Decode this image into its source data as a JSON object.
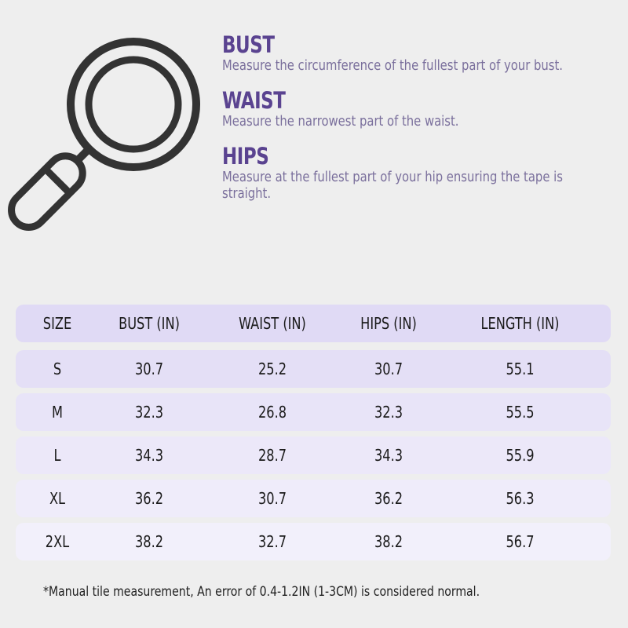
{
  "icon": "magnifying-glass-icon",
  "colors": {
    "heading": "#5a4390",
    "description": "#7a6f9c",
    "header_row": "#e0daf5",
    "rows": [
      "#e4dff6",
      "#e8e4f8",
      "#ece8f9",
      "#efecfa",
      "#f2f0fb"
    ]
  },
  "guide": [
    {
      "title": "BUST",
      "text": "Measure the circumference of the fullest part of your bust."
    },
    {
      "title": "WAIST",
      "text": "Measure the narrowest part of the waist."
    },
    {
      "title": "HIPS",
      "text": "Measure at the fullest part of your hip ensuring the tape is straight."
    }
  ],
  "table": {
    "headers": [
      "SIZE",
      "BUST (IN)",
      "WAIST (IN)",
      "HIPS (IN)",
      "LENGTH (IN)"
    ],
    "rows": [
      [
        "S",
        "30.7",
        "25.2",
        "30.7",
        "55.1"
      ],
      [
        "M",
        "32.3",
        "26.8",
        "32.3",
        "55.5"
      ],
      [
        "L",
        "34.3",
        "28.7",
        "34.3",
        "55.9"
      ],
      [
        "XL",
        "36.2",
        "30.7",
        "36.2",
        "56.3"
      ],
      [
        "2XL",
        "38.2",
        "32.7",
        "38.2",
        "56.7"
      ]
    ]
  },
  "note": "*Manual tile measurement, An error of 0.4-1.2IN (1-3CM) is considered normal."
}
